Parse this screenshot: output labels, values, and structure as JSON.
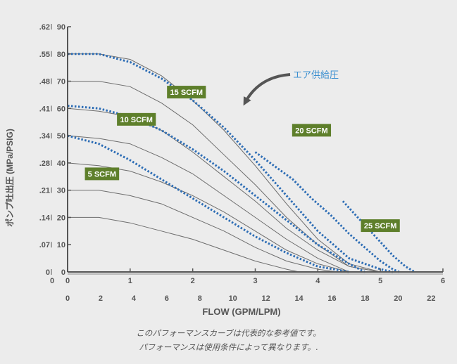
{
  "chart_data": {
    "type": "line",
    "title": "",
    "xlabel": "FLOW (GPM/LPM)",
    "ylabel": "ポンプ吐出圧 (MPa/PSIG)",
    "x_gpm_ticks": [
      "0",
      "1",
      "2",
      "3",
      "4",
      "5",
      "6"
    ],
    "x_lpm_ticks": [
      "0",
      "2",
      "4",
      "6",
      "8",
      "10",
      "12",
      "14",
      "16",
      "18",
      "20",
      "22"
    ],
    "y_mpa_ticks": [
      "0",
      ".07",
      ".14",
      ".21",
      ".28",
      ".34",
      ".41",
      ".48",
      ".55",
      ".62"
    ],
    "y_psig_ticks": [
      "0",
      "10",
      "20",
      "30",
      "40",
      "50",
      "60",
      "70",
      "80",
      "90"
    ],
    "xlim_gpm": [
      0,
      6
    ],
    "ylim_psig": [
      0,
      90
    ],
    "grid": false,
    "air_pressure_curves_label": "エア供給圧",
    "air_pressure_curves": [
      {
        "x": [
          0,
          0.5,
          1,
          1.5,
          2,
          2.5,
          3,
          3.5,
          4,
          4.5,
          5,
          5.5
        ],
        "y": [
          80,
          80,
          78,
          72,
          63,
          52,
          39,
          25,
          12,
          3,
          0,
          0
        ]
      },
      {
        "x": [
          0,
          0.5,
          1,
          1.5,
          2,
          2.5,
          3,
          3.5,
          4,
          4.5,
          5,
          5.4
        ],
        "y": [
          70,
          70,
          68,
          62,
          54,
          43,
          32,
          20,
          10,
          2,
          0,
          0
        ]
      },
      {
        "x": [
          0,
          0.5,
          1,
          1.5,
          2,
          2.5,
          3,
          3.5,
          4,
          4.5,
          5,
          5.3
        ],
        "y": [
          60,
          59,
          57,
          52,
          44,
          35,
          26,
          16,
          8,
          2,
          0,
          0
        ]
      },
      {
        "x": [
          0,
          0.5,
          1,
          1.5,
          2,
          2.5,
          3,
          3.5,
          4,
          4.5,
          5
        ],
        "y": [
          50,
          49,
          47,
          42,
          36,
          28,
          20,
          12,
          5,
          0,
          0
        ]
      },
      {
        "x": [
          0,
          0.5,
          1,
          1.5,
          2,
          2.5,
          3,
          3.5,
          4,
          4.5,
          4.8
        ],
        "y": [
          40,
          39,
          37,
          33,
          28,
          22,
          15,
          8,
          3,
          0,
          0
        ]
      },
      {
        "x": [
          0,
          0.5,
          1,
          1.5,
          2,
          2.5,
          3,
          3.5,
          4,
          4.3
        ],
        "y": [
          30,
          30,
          28,
          25,
          20,
          15,
          9,
          4,
          1,
          0
        ]
      },
      {
        "x": [
          0,
          0.5,
          1,
          1.5,
          2,
          2.5,
          3,
          3.5,
          3.7
        ],
        "y": [
          20,
          20,
          18,
          15,
          12,
          8,
          4,
          1,
          0
        ]
      }
    ],
    "series": [
      {
        "name": "5 SCFM",
        "x": [
          0,
          0.5,
          1,
          1.5,
          2,
          2.5,
          3,
          3.5,
          4,
          4.5
        ],
        "y": [
          50,
          47,
          41,
          34,
          27,
          20,
          13,
          7,
          2,
          0
        ]
      },
      {
        "name": "10 SCFM",
        "x": [
          0,
          0.5,
          1,
          1.5,
          2,
          2.5,
          3,
          3.5,
          4,
          4.5,
          4.75
        ],
        "y": [
          61,
          60,
          57,
          52,
          45,
          37,
          28,
          19,
          10,
          3,
          0
        ]
      },
      {
        "name": "15 SCFM",
        "x": [
          0,
          0.5,
          1,
          1.5,
          2,
          2.5,
          3,
          3.5,
          4,
          4.5,
          5,
          5.2
        ],
        "y": [
          80,
          80,
          77,
          71,
          63,
          53,
          41,
          28,
          15,
          5,
          1,
          0
        ]
      },
      {
        "name": "20 SCFM",
        "x": [
          3,
          3.3,
          3.6,
          3.9,
          4.2,
          4.5,
          4.8,
          5,
          5.2,
          5.3
        ],
        "y": [
          44,
          39,
          34,
          27,
          21,
          14,
          8,
          4,
          1,
          0
        ]
      },
      {
        "name": "25 SCFM",
        "x": [
          4.4,
          4.6,
          4.8,
          5,
          5.2,
          5.4,
          5.55
        ],
        "y": [
          26,
          21,
          16,
          11,
          6,
          2,
          0
        ]
      }
    ]
  },
  "colors": {
    "dotted": "#2d6db5",
    "curve": "#6d6d6d",
    "axis": "#555555",
    "badge": "#5e7f2b",
    "annotation": "#3b8fd0"
  },
  "notes": [
    "このパフォーマンスカーブは代表的な参考値です。",
    "パフォーマンスは使用条件によって異なります。."
  ]
}
